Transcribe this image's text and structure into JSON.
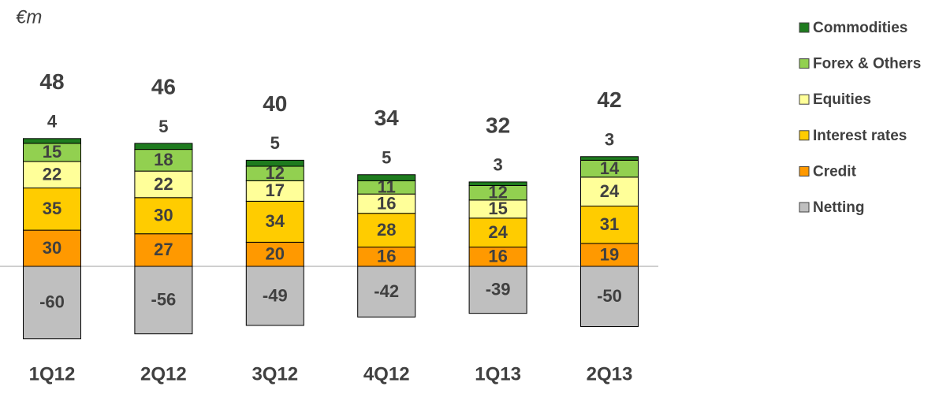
{
  "chart_data": {
    "type": "stacked_bar",
    "unit_label": "€m",
    "categories": [
      "1Q12",
      "2Q12",
      "3Q12",
      "4Q12",
      "1Q13",
      "2Q13"
    ],
    "series": [
      {
        "name": "Commodities",
        "color": "#1e7b1e",
        "values": [
          4,
          5,
          5,
          5,
          3,
          3
        ]
      },
      {
        "name": "Forex & Others",
        "color": "#92d050",
        "values": [
          15,
          18,
          12,
          11,
          12,
          14
        ]
      },
      {
        "name": "Equities",
        "color": "#ffff99",
        "values": [
          22,
          22,
          17,
          16,
          15,
          24
        ]
      },
      {
        "name": "Interest rates",
        "color": "#ffcc00",
        "values": [
          35,
          30,
          34,
          28,
          24,
          31
        ]
      },
      {
        "name": "Credit",
        "color": "#ff9900",
        "values": [
          30,
          27,
          20,
          16,
          16,
          19
        ]
      },
      {
        "name": "Netting",
        "color": "#bfbfbf",
        "values": [
          -60,
          -56,
          -49,
          -42,
          -39,
          -50
        ]
      }
    ],
    "totals": [
      48,
      46,
      40,
      34,
      32,
      42
    ],
    "legend": "right"
  }
}
